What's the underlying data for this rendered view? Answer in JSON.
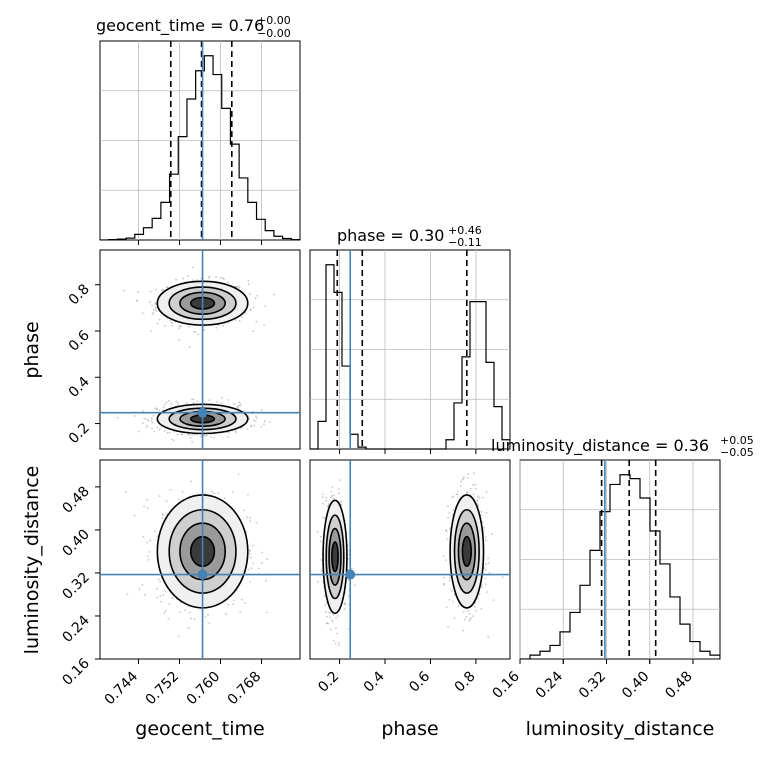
{
  "chart_data": {
    "type": "corner",
    "parameters": [
      "geocent_time",
      "phase",
      "luminosity_distance"
    ],
    "truths": {
      "geocent_time": 0.7565,
      "phase": 0.247,
      "luminosity_distance": 0.317
    },
    "truth_color": "#4682b4",
    "grid": true,
    "diagonal": [
      {
        "param": "geocent_time",
        "title_prefix": "geocent_time = ",
        "title_value": "0.76",
        "title_plus": "+0.00",
        "title_minus": "−0.00",
        "range": [
          0.7365,
          0.7755
        ],
        "quantile_lines": [
          0.7503,
          0.7563,
          0.7622
        ],
        "hist_values": [
          0.0,
          0.002,
          0.005,
          0.01,
          0.03,
          0.065,
          0.115,
          0.2,
          0.35,
          0.55,
          0.75,
          0.9,
          0.98,
          0.88,
          0.7,
          0.51,
          0.33,
          0.2,
          0.11,
          0.05,
          0.02,
          0.008,
          0.002
        ],
        "x_ticks": [
          "0.744",
          "0.752",
          "0.760",
          "0.768"
        ]
      },
      {
        "param": "phase",
        "title_prefix": "phase = ",
        "title_value": "0.30",
        "title_plus": "+0.46",
        "title_minus": "−0.11",
        "range": [
          0.07,
          0.95
        ],
        "quantile_lines": [
          0.19,
          0.3,
          0.76
        ],
        "hist_values": [
          0.0,
          0.15,
          1.0,
          0.85,
          0.45,
          0.08,
          0.01,
          0.0,
          0.0,
          0.0,
          0.0,
          0.0,
          0.0,
          0.0,
          0.0,
          0.0,
          0.0,
          0.05,
          0.25,
          0.5,
          0.8,
          0.8,
          0.47,
          0.23,
          0.05
        ],
        "x_ticks": [
          "0.2",
          "0.4",
          "0.6",
          "0.8"
        ]
      },
      {
        "param": "luminosity_distance",
        "title_prefix": "luminosity_distance = ",
        "title_value": "0.36",
        "title_plus": "+0.05",
        "title_minus": "−0.05",
        "range": [
          0.16,
          0.53
        ],
        "quantile_lines": [
          0.311,
          0.362,
          0.411
        ],
        "hist_values": [
          0.0,
          0.02,
          0.04,
          0.07,
          0.14,
          0.24,
          0.38,
          0.56,
          0.76,
          0.9,
          0.95,
          0.93,
          0.83,
          0.66,
          0.49,
          0.32,
          0.18,
          0.09,
          0.04,
          0.02
        ],
        "x_ticks": [
          "0.16",
          "0.24",
          "0.32",
          "0.40",
          "0.48"
        ]
      }
    ],
    "pairs": [
      {
        "x": "geocent_time",
        "y": "phase",
        "modes": [
          {
            "center": [
              0.7565,
              0.72
            ],
            "sd": [
              0.0042,
              0.045
            ]
          },
          {
            "center": [
              0.7565,
              0.22
            ],
            "sd": [
              0.0042,
              0.03
            ]
          }
        ],
        "y_ticks": [
          "0.2",
          "0.4",
          "0.6",
          "0.8"
        ],
        "y_range": [
          0.09,
          0.95
        ]
      },
      {
        "x": "geocent_time",
        "y": "luminosity_distance",
        "modes": [
          {
            "center": [
              0.7565,
              0.36
            ],
            "sd": [
              0.0042,
              0.05
            ]
          }
        ],
        "y_ticks": [
          "0.16",
          "0.24",
          "0.32",
          "0.40",
          "0.48"
        ],
        "y_range": [
          0.16,
          0.53
        ]
      },
      {
        "x": "phase",
        "y": "luminosity_distance",
        "modes": [
          {
            "center": [
              0.18,
              0.35
            ],
            "sd": [
              0.025,
              0.05
            ]
          },
          {
            "center": [
              0.76,
              0.36
            ],
            "sd": [
              0.035,
              0.05
            ]
          }
        ]
      }
    ],
    "xlabels": [
      "geocent_time",
      "phase",
      "luminosity_distance"
    ],
    "ylabels": [
      "phase",
      "luminosity_distance"
    ]
  }
}
